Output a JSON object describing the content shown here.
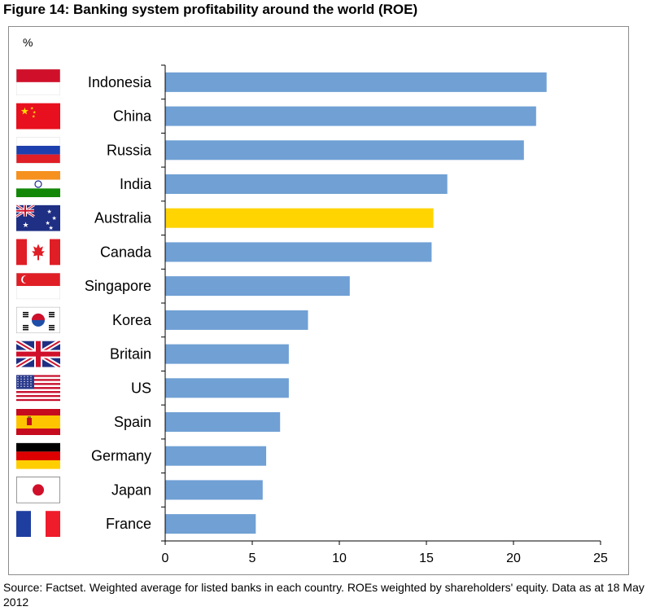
{
  "title": "Figure 14: Banking system profitability around the world (ROE)",
  "unit_label": "%",
  "source": "Source: Factset. Weighted average for listed banks in each country. ROEs weighted by shareholders' equity. Data as at 18 May 2012",
  "colors": {
    "bar": "#70a0d4",
    "highlight": "#ffd400",
    "axis": "#000000"
  },
  "chart_data": {
    "type": "bar",
    "orientation": "horizontal",
    "categories": [
      "Indonesia",
      "China",
      "Russia",
      "India",
      "Australia",
      "Canada",
      "Singapore",
      "Korea",
      "Britain",
      "US",
      "Spain",
      "Germany",
      "Japan",
      "France"
    ],
    "values": [
      21.9,
      21.3,
      20.6,
      16.2,
      15.4,
      15.3,
      10.6,
      8.2,
      7.1,
      7.1,
      6.6,
      5.8,
      5.6,
      5.2
    ],
    "highlight_category": "Australia",
    "xlim": [
      0,
      25
    ],
    "xticks": [
      "0",
      "5",
      "10",
      "15",
      "20",
      "25"
    ],
    "flag_icons": [
      "indonesia-flag-icon",
      "china-flag-icon",
      "russia-flag-icon",
      "india-flag-icon",
      "australia-flag-icon",
      "canada-flag-icon",
      "singapore-flag-icon",
      "korea-flag-icon",
      "britain-flag-icon",
      "us-flag-icon",
      "spain-flag-icon",
      "germany-flag-icon",
      "japan-flag-icon",
      "france-flag-icon"
    ],
    "xlabel": "",
    "ylabel": "%",
    "grid": false,
    "legend": "none"
  }
}
